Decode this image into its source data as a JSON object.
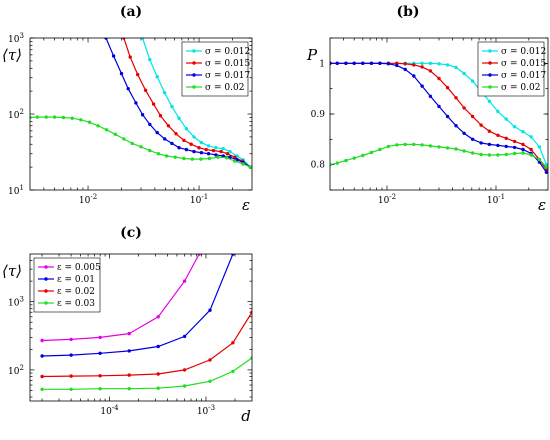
{
  "panels": [
    {
      "id": "a",
      "panel_label": "(a)",
      "ylabel": "⟨τ⟩",
      "xlabel": "ε",
      "legend_position": "top-right",
      "x_tick_labels": [
        {
          "value": 0.01,
          "mant": "10",
          "exp": "-2"
        },
        {
          "value": 0.1,
          "mant": "10",
          "exp": "-1"
        }
      ],
      "y_tick_labels": [
        {
          "value": 10,
          "mant": "10",
          "exp": "1"
        },
        {
          "value": 100,
          "mant": "10",
          "exp": "2"
        },
        {
          "value": 1000,
          "mant": "10",
          "exp": "3"
        }
      ]
    },
    {
      "id": "b",
      "panel_label": "(b)",
      "ylabel": "P",
      "xlabel": "ε",
      "legend_position": "top-right",
      "x_tick_labels": [
        {
          "value": 0.01,
          "mant": "10",
          "exp": "-2"
        },
        {
          "value": 0.1,
          "mant": "10",
          "exp": "-1"
        }
      ],
      "y_tick_labels": [
        {
          "value": 0.8,
          "text": "0.8"
        },
        {
          "value": 0.9,
          "text": "0.9"
        },
        {
          "value": 1.0,
          "text": "1"
        }
      ]
    },
    {
      "id": "c",
      "panel_label": "(c)",
      "ylabel": "⟨τ⟩",
      "xlabel": "d",
      "legend_position": "top-left",
      "x_tick_labels": [
        {
          "value": 0.0001,
          "mant": "10",
          "exp": "-4"
        },
        {
          "value": 0.001,
          "mant": "10",
          "exp": "-3"
        }
      ],
      "y_tick_labels": [
        {
          "value": 100,
          "mant": "10",
          "exp": "2"
        },
        {
          "value": 1000,
          "mant": "10",
          "exp": "3"
        }
      ]
    }
  ],
  "chart_data": [
    {
      "type": "line",
      "panel": "a",
      "xlabel": "ε",
      "ylabel": "⟨τ⟩",
      "xscale": "log",
      "yscale": "log",
      "xlim": [
        0.003,
        0.3
      ],
      "ylim": [
        10,
        1000
      ],
      "grid": false,
      "legend": "top-right",
      "series": [
        {
          "name": "σ = 0.012",
          "color": "#00e5e5",
          "x": [
            0.031,
            0.036,
            0.042,
            0.049,
            0.057,
            0.066,
            0.077,
            0.09,
            0.105,
            0.122,
            0.142,
            0.165,
            0.19,
            0.22,
            0.25,
            0.29
          ],
          "y": [
            1000,
            520,
            310,
            190,
            125,
            88,
            64,
            50,
            42,
            38,
            36,
            35,
            32,
            28,
            25,
            20
          ]
        },
        {
          "name": "σ = 0.015",
          "color": "#e60000",
          "x": [
            0.021,
            0.024,
            0.028,
            0.033,
            0.039,
            0.045,
            0.053,
            0.062,
            0.073,
            0.085,
            0.1,
            0.116,
            0.135,
            0.158,
            0.18,
            0.21,
            0.245,
            0.29
          ],
          "y": [
            1000,
            560,
            330,
            205,
            135,
            95,
            70,
            55,
            45,
            40,
            36,
            34,
            33,
            32,
            30,
            27,
            24,
            20
          ]
        },
        {
          "name": "σ = 0.017",
          "color": "#0000e0",
          "x": [
            0.0145,
            0.017,
            0.02,
            0.023,
            0.027,
            0.031,
            0.036,
            0.042,
            0.049,
            0.057,
            0.066,
            0.077,
            0.09,
            0.105,
            0.122,
            0.142,
            0.165,
            0.19,
            0.22,
            0.25,
            0.29
          ],
          "y": [
            1000,
            580,
            340,
            215,
            140,
            98,
            73,
            57,
            47,
            41,
            36,
            34,
            32,
            31,
            30,
            29,
            28,
            27,
            25,
            23,
            20
          ]
        },
        {
          "name": "σ = 0.02",
          "color": "#22dd22",
          "x": [
            0.003,
            0.0035,
            0.0042,
            0.005,
            0.006,
            0.0072,
            0.0086,
            0.0103,
            0.0123,
            0.0147,
            0.0176,
            0.021,
            0.025,
            0.03,
            0.036,
            0.043,
            0.051,
            0.061,
            0.073,
            0.087,
            0.104,
            0.124,
            0.148,
            0.177,
            0.21,
            0.25,
            0.29
          ],
          "y": [
            90,
            91,
            91,
            91,
            90,
            88,
            84,
            78,
            70,
            62,
            54,
            47,
            41,
            37,
            33,
            30,
            28,
            27,
            26,
            25.5,
            25.5,
            26,
            27,
            26.5,
            24,
            22,
            20
          ]
        }
      ]
    },
    {
      "type": "line",
      "panel": "b",
      "xlabel": "ε",
      "ylabel": "P",
      "xscale": "log",
      "yscale": "linear",
      "xlim": [
        0.003,
        0.3
      ],
      "ylim": [
        0.75,
        1.05
      ],
      "grid": false,
      "legend": "top-right",
      "series": [
        {
          "name": "σ = 0.012",
          "color": "#00e5e5",
          "x": [
            0.003,
            0.0035,
            0.0042,
            0.005,
            0.006,
            0.0072,
            0.0086,
            0.0103,
            0.0123,
            0.0147,
            0.0176,
            0.021,
            0.025,
            0.03,
            0.036,
            0.043,
            0.051,
            0.061,
            0.073,
            0.087,
            0.104,
            0.124,
            0.148,
            0.177,
            0.21,
            0.25,
            0.29
          ],
          "y": [
            1,
            1,
            1,
            1,
            1,
            1,
            1,
            1,
            1,
            1,
            1,
            1,
            1,
            0.999,
            0.997,
            0.992,
            0.98,
            0.965,
            0.945,
            0.925,
            0.905,
            0.89,
            0.875,
            0.865,
            0.855,
            0.835,
            0.8
          ]
        },
        {
          "name": "σ = 0.015",
          "color": "#e60000",
          "x": [
            0.003,
            0.0035,
            0.0042,
            0.005,
            0.006,
            0.0072,
            0.0086,
            0.0103,
            0.0123,
            0.0147,
            0.0176,
            0.021,
            0.025,
            0.03,
            0.036,
            0.043,
            0.051,
            0.061,
            0.073,
            0.087,
            0.104,
            0.124,
            0.148,
            0.177,
            0.21,
            0.25,
            0.29
          ],
          "y": [
            1,
            1,
            1,
            1,
            1,
            1,
            1,
            1,
            1,
            0.999,
            0.997,
            0.993,
            0.985,
            0.97,
            0.952,
            0.932,
            0.912,
            0.895,
            0.878,
            0.866,
            0.858,
            0.852,
            0.846,
            0.84,
            0.83,
            0.81,
            0.79
          ]
        },
        {
          "name": "σ = 0.017",
          "color": "#0000e0",
          "x": [
            0.003,
            0.0035,
            0.0042,
            0.005,
            0.006,
            0.0072,
            0.0086,
            0.0103,
            0.0123,
            0.0147,
            0.0176,
            0.021,
            0.025,
            0.03,
            0.036,
            0.043,
            0.051,
            0.061,
            0.073,
            0.087,
            0.104,
            0.124,
            0.148,
            0.177,
            0.21,
            0.25,
            0.29
          ],
          "y": [
            1,
            1,
            1,
            1,
            1,
            1,
            1,
            0.999,
            0.996,
            0.988,
            0.975,
            0.955,
            0.935,
            0.915,
            0.895,
            0.877,
            0.862,
            0.85,
            0.843,
            0.84,
            0.838,
            0.836,
            0.834,
            0.83,
            0.822,
            0.805,
            0.785
          ]
        },
        {
          "name": "σ = 0.02",
          "color": "#22dd22",
          "x": [
            0.003,
            0.0035,
            0.0042,
            0.005,
            0.006,
            0.0072,
            0.0086,
            0.0103,
            0.0123,
            0.0147,
            0.0176,
            0.021,
            0.025,
            0.03,
            0.036,
            0.043,
            0.051,
            0.061,
            0.073,
            0.087,
            0.104,
            0.124,
            0.148,
            0.177,
            0.21,
            0.25,
            0.29
          ],
          "y": [
            0.8,
            0.803,
            0.808,
            0.813,
            0.818,
            0.824,
            0.83,
            0.836,
            0.839,
            0.84,
            0.84,
            0.839,
            0.837,
            0.835,
            0.833,
            0.831,
            0.827,
            0.823,
            0.82,
            0.819,
            0.819,
            0.82,
            0.822,
            0.823,
            0.819,
            0.81,
            0.795
          ]
        }
      ]
    },
    {
      "type": "line",
      "panel": "c",
      "xlabel": "d",
      "ylabel": "⟨τ⟩",
      "xscale": "log",
      "yscale": "log",
      "xlim": [
        1.5e-05,
        0.003
      ],
      "ylim": [
        35,
        5000
      ],
      "grid": false,
      "legend": "top-left",
      "series": [
        {
          "name": "ε = 0.005",
          "color": "#e600e6",
          "x": [
            2e-05,
            4e-05,
            8e-05,
            0.00016,
            0.00032,
            0.0006,
            0.00085
          ],
          "y": [
            270,
            280,
            300,
            340,
            600,
            2000,
            5000
          ]
        },
        {
          "name": "ε = 0.01",
          "color": "#0000e0",
          "x": [
            2e-05,
            4e-05,
            8e-05,
            0.00016,
            0.00032,
            0.0006,
            0.0011,
            0.0019
          ],
          "y": [
            160,
            165,
            175,
            190,
            220,
            310,
            750,
            5000
          ]
        },
        {
          "name": "ε = 0.02",
          "color": "#e60000",
          "x": [
            2e-05,
            4e-05,
            8e-05,
            0.00016,
            0.00032,
            0.0006,
            0.0011,
            0.0019,
            0.003
          ],
          "y": [
            80,
            81,
            82,
            84,
            87,
            100,
            140,
            250,
            700
          ]
        },
        {
          "name": "ε = 0.03",
          "color": "#22dd22",
          "x": [
            2e-05,
            4e-05,
            8e-05,
            0.00016,
            0.00032,
            0.0006,
            0.0011,
            0.0019,
            0.003
          ],
          "y": [
            52,
            52,
            53,
            53,
            54,
            58,
            68,
            95,
            150
          ]
        }
      ]
    }
  ]
}
